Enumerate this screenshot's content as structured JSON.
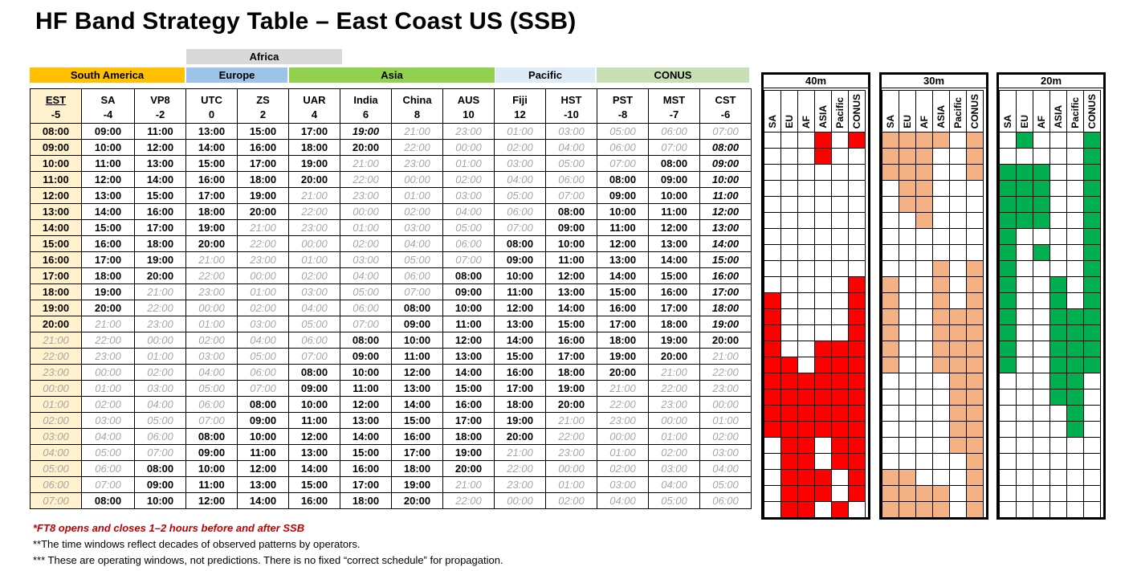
{
  "title": "HF Band Strategy Table – East Coast US (SSB)",
  "regions": [
    {
      "key": "africa",
      "label": "Africa",
      "color": "#d9d9d9"
    },
    {
      "key": "south_america",
      "label": "South America",
      "color": "#ffc000"
    },
    {
      "key": "europe",
      "label": "Europe",
      "color": "#9dc3e6"
    },
    {
      "key": "asia",
      "label": "Asia",
      "color": "#92d050"
    },
    {
      "key": "pacific",
      "label": "Pacific",
      "color": "#ddebf7"
    },
    {
      "key": "conus",
      "label": "CONUS",
      "color": "#c6e0b4"
    }
  ],
  "columns": [
    {
      "name": "EST",
      "offset": "-5"
    },
    {
      "name": "SA",
      "offset": "-4"
    },
    {
      "name": "VP8",
      "offset": "-2"
    },
    {
      "name": "UTC",
      "offset": "0"
    },
    {
      "name": "ZS",
      "offset": "2"
    },
    {
      "name": "UAR",
      "offset": "4"
    },
    {
      "name": "India",
      "offset": "6"
    },
    {
      "name": "China",
      "offset": "8"
    },
    {
      "name": "AUS",
      "offset": "10"
    },
    {
      "name": "Fiji",
      "offset": "12"
    },
    {
      "name": "HST",
      "offset": "-10"
    },
    {
      "name": "PST",
      "offset": "-8"
    },
    {
      "name": "MST",
      "offset": "-7"
    },
    {
      "name": "CST",
      "offset": "-6"
    }
  ],
  "rows": [
    {
      "cells": [
        "08:00",
        "09:00",
        "11:00",
        "13:00",
        "15:00",
        "17:00",
        "19:00",
        "21:00",
        "23:00",
        "01:00",
        "03:00",
        "05:00",
        "06:00",
        "07:00"
      ],
      "styles": "bbbbbbIgggggggg"
    },
    {
      "cells": [
        "09:00",
        "10:00",
        "12:00",
        "14:00",
        "16:00",
        "18:00",
        "20:00",
        "22:00",
        "00:00",
        "02:00",
        "04:00",
        "06:00",
        "07:00",
        "08:00"
      ],
      "styles": "bbbbbbbggggggI"
    },
    {
      "cells": [
        "10:00",
        "11:00",
        "13:00",
        "15:00",
        "17:00",
        "19:00",
        "21:00",
        "23:00",
        "01:00",
        "03:00",
        "05:00",
        "07:00",
        "08:00",
        "09:00"
      ],
      "styles": "bbbbbbgggggg bI"
    },
    {
      "cells": [
        "11:00",
        "12:00",
        "14:00",
        "16:00",
        "18:00",
        "20:00",
        "22:00",
        "00:00",
        "02:00",
        "04:00",
        "06:00",
        "08:00",
        "09:00",
        "10:00"
      ],
      "styles": "bbbbbbgggggbbI"
    },
    {
      "cells": [
        "12:00",
        "13:00",
        "15:00",
        "17:00",
        "19:00",
        "21:00",
        "23:00",
        "01:00",
        "03:00",
        "05:00",
        "07:00",
        "09:00",
        "10:00",
        "11:00"
      ],
      "styles": "bbbbbgggggg bbI"
    },
    {
      "cells": [
        "13:00",
        "14:00",
        "16:00",
        "18:00",
        "20:00",
        "22:00",
        "00:00",
        "02:00",
        "04:00",
        "06:00",
        "08:00",
        "10:00",
        "11:00",
        "12:00"
      ],
      "styles": "bbbbbgggggbbbI"
    },
    {
      "cells": [
        "14:00",
        "15:00",
        "17:00",
        "19:00",
        "21:00",
        "23:00",
        "01:00",
        "03:00",
        "05:00",
        "07:00",
        "09:00",
        "11:00",
        "12:00",
        "13:00"
      ],
      "styles": "bbbbggggggbbbI"
    },
    {
      "cells": [
        "15:00",
        "16:00",
        "18:00",
        "20:00",
        "22:00",
        "00:00",
        "02:00",
        "04:00",
        "06:00",
        "08:00",
        "10:00",
        "12:00",
        "13:00",
        "14:00"
      ],
      "styles": "bbbbgggggbbbbI"
    },
    {
      "cells": [
        "16:00",
        "17:00",
        "19:00",
        "21:00",
        "23:00",
        "01:00",
        "03:00",
        "05:00",
        "07:00",
        "09:00",
        "11:00",
        "13:00",
        "14:00",
        "15:00"
      ],
      "styles": "bbbggggggbbbbI"
    },
    {
      "cells": [
        "17:00",
        "18:00",
        "20:00",
        "22:00",
        "00:00",
        "02:00",
        "04:00",
        "06:00",
        "08:00",
        "10:00",
        "12:00",
        "14:00",
        "15:00",
        "16:00"
      ],
      "styles": "bbbgggggbbbbbI"
    },
    {
      "cells": [
        "18:00",
        "19:00",
        "21:00",
        "23:00",
        "01:00",
        "03:00",
        "05:00",
        "07:00",
        "09:00",
        "11:00",
        "13:00",
        "15:00",
        "16:00",
        "17:00"
      ],
      "styles": "bbggggggbbbbbI"
    },
    {
      "cells": [
        "19:00",
        "20:00",
        "22:00",
        "00:00",
        "02:00",
        "04:00",
        "06:00",
        "08:00",
        "10:00",
        "12:00",
        "14:00",
        "16:00",
        "17:00",
        "18:00"
      ],
      "styles": "bbgggggbbbbbbI"
    },
    {
      "cells": [
        "20:00",
        "21:00",
        "23:00",
        "01:00",
        "03:00",
        "05:00",
        "07:00",
        "09:00",
        "11:00",
        "13:00",
        "15:00",
        "17:00",
        "18:00",
        "19:00"
      ],
      "styles": "bggggggbbbbbbI"
    },
    {
      "cells": [
        "21:00",
        "22:00",
        "00:00",
        "02:00",
        "04:00",
        "06:00",
        "08:00",
        "10:00",
        "12:00",
        "14:00",
        "16:00",
        "18:00",
        "19:00",
        "20:00"
      ],
      "styles": "ggggggbbbbbbbb"
    },
    {
      "cells": [
        "22:00",
        "23:00",
        "01:00",
        "03:00",
        "05:00",
        "07:00",
        "09:00",
        "11:00",
        "13:00",
        "15:00",
        "17:00",
        "19:00",
        "20:00",
        "21:00"
      ],
      "styles": "ggggggbbbbbbbg"
    },
    {
      "cells": [
        "23:00",
        "00:00",
        "02:00",
        "04:00",
        "06:00",
        "08:00",
        "10:00",
        "12:00",
        "14:00",
        "16:00",
        "18:00",
        "20:00",
        "21:00",
        "22:00"
      ],
      "styles": "gggggbbbbbbbgg"
    },
    {
      "cells": [
        "00:00",
        "01:00",
        "03:00",
        "05:00",
        "07:00",
        "09:00",
        "11:00",
        "13:00",
        "15:00",
        "17:00",
        "19:00",
        "21:00",
        "22:00",
        "23:00"
      ],
      "styles": "gggggbbbbbbggg"
    },
    {
      "cells": [
        "01:00",
        "02:00",
        "04:00",
        "06:00",
        "08:00",
        "10:00",
        "12:00",
        "14:00",
        "16:00",
        "18:00",
        "20:00",
        "22:00",
        "23:00",
        "00:00"
      ],
      "styles": "ggggbbbbbbbggg"
    },
    {
      "cells": [
        "02:00",
        "03:00",
        "05:00",
        "07:00",
        "09:00",
        "11:00",
        "13:00",
        "15:00",
        "17:00",
        "19:00",
        "21:00",
        "23:00",
        "00:00",
        "01:00"
      ],
      "styles": "ggggbbbbbbgggg"
    },
    {
      "cells": [
        "03:00",
        "04:00",
        "06:00",
        "08:00",
        "10:00",
        "12:00",
        "14:00",
        "16:00",
        "18:00",
        "20:00",
        "22:00",
        "00:00",
        "01:00",
        "02:00"
      ],
      "styles": "gggbbbbbbbgggg"
    },
    {
      "cells": [
        "04:00",
        "05:00",
        "07:00",
        "09:00",
        "11:00",
        "13:00",
        "15:00",
        "17:00",
        "19:00",
        "21:00",
        "23:00",
        "01:00",
        "02:00",
        "03:00"
      ],
      "styles": "gggbbbbbbggggg"
    },
    {
      "cells": [
        "05:00",
        "06:00",
        "08:00",
        "10:00",
        "12:00",
        "14:00",
        "16:00",
        "18:00",
        "20:00",
        "22:00",
        "00:00",
        "02:00",
        "03:00",
        "04:00"
      ],
      "styles": "ggbbbbbbbggggg"
    },
    {
      "cells": [
        "06:00",
        "07:00",
        "09:00",
        "11:00",
        "13:00",
        "15:00",
        "17:00",
        "19:00",
        "21:00",
        "23:00",
        "01:00",
        "03:00",
        "04:00",
        "05:00"
      ],
      "styles": "ggbbbbbbgggggg"
    },
    {
      "cells": [
        "07:00",
        "08:00",
        "10:00",
        "12:00",
        "14:00",
        "16:00",
        "18:00",
        "20:00",
        "22:00",
        "00:00",
        "02:00",
        "04:00",
        "05:00",
        "06:00"
      ],
      "styles": "gbbbbbbbgggggg"
    }
  ],
  "bands": [
    {
      "name": "40m",
      "color": "#ff0000",
      "columns": [
        "SA",
        "EU",
        "AF",
        "ASIA",
        "Pacific",
        "CONUS"
      ],
      "grid": [
        "000101",
        "000100",
        "000000",
        "000000",
        "000000",
        "000000",
        "000000",
        "000000",
        "000000",
        "000001",
        "100001",
        "100001",
        "100001",
        "100111",
        "110111",
        "111111",
        "111111",
        "111111",
        "111111",
        "011011",
        "011011",
        "011101",
        "011101",
        "011010"
      ]
    },
    {
      "name": "30m",
      "color": "#f4b183",
      "columns": [
        "SA",
        "EU",
        "AF",
        "ASIA",
        "Pacific",
        "CONUS"
      ],
      "grid": [
        "111101",
        "111001",
        "111001",
        "011000",
        "011000",
        "001000",
        "000000",
        "000000",
        "000101",
        "100101",
        "100101",
        "100111",
        "100111",
        "100111",
        "100111",
        "000011",
        "000011",
        "000011",
        "000011",
        "000011",
        "000001",
        "110001",
        "111101",
        "111101"
      ]
    },
    {
      "name": "20m",
      "color": "#00b050",
      "columns": [
        "SA",
        "EU",
        "AF",
        "ASIA",
        "Pacific",
        "CONUS"
      ],
      "grid": [
        "010001",
        "000001",
        "111001",
        "111001",
        "111001",
        "111001",
        "100001",
        "101001",
        "100001",
        "100101",
        "100101",
        "100111",
        "100111",
        "100111",
        "100111",
        "000110",
        "000110",
        "000010",
        "000010",
        "000000",
        "000000",
        "000000",
        "000000",
        "000000"
      ]
    }
  ],
  "notes": [
    "*FT8 opens and closes 1–2 hours before and after  SSB",
    "**The time windows reflect decades of observed patterns by operators.",
    "*** These are operating windows, not predictions. There is no fixed “correct schedule” for propagation."
  ]
}
